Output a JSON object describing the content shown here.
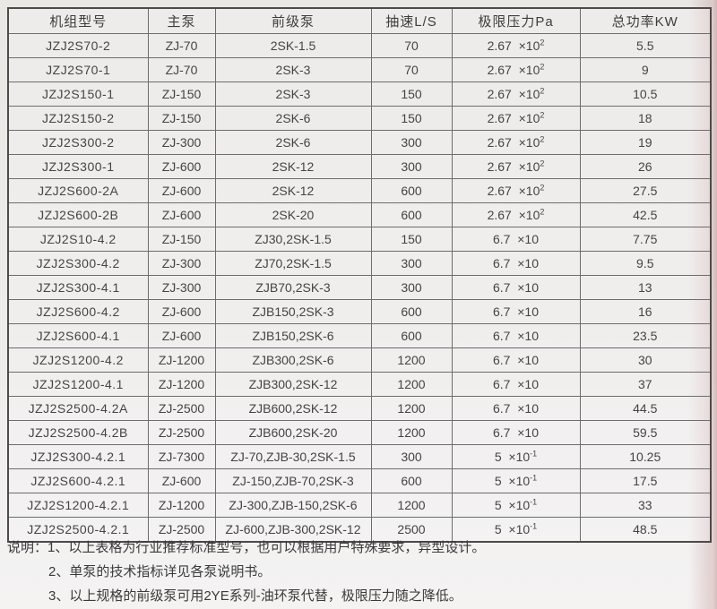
{
  "table": {
    "headers": [
      "机组型号",
      "主泵",
      "前级泵",
      "抽速L/S",
      "极限压力Pa",
      "总功率KW"
    ],
    "rows": [
      {
        "model": "JZJ2S70-2",
        "main_pump": "ZJ-70",
        "backing_pump": "2SK-1.5",
        "speed": "70",
        "pressure": {
          "base": "2.67",
          "exp": "2"
        },
        "power": "5.5"
      },
      {
        "model": "JZJ2S70-1",
        "main_pump": "ZJ-70",
        "backing_pump": "2SK-3",
        "speed": "70",
        "pressure": {
          "base": "2.67",
          "exp": "2"
        },
        "power": "9"
      },
      {
        "model": "JZJ2S150-1",
        "main_pump": "ZJ-150",
        "backing_pump": "2SK-3",
        "speed": "150",
        "pressure": {
          "base": "2.67",
          "exp": "2"
        },
        "power": "10.5"
      },
      {
        "model": "JZJ2S150-2",
        "main_pump": "ZJ-150",
        "backing_pump": "2SK-6",
        "speed": "150",
        "pressure": {
          "base": "2.67",
          "exp": "2"
        },
        "power": "18"
      },
      {
        "model": "JZJ2S300-2",
        "main_pump": "ZJ-300",
        "backing_pump": "2SK-6",
        "speed": "300",
        "pressure": {
          "base": "2.67",
          "exp": "2"
        },
        "power": "19"
      },
      {
        "model": "JZJ2S300-1",
        "main_pump": "ZJ-600",
        "backing_pump": "2SK-12",
        "speed": "300",
        "pressure": {
          "base": "2.67",
          "exp": "2"
        },
        "power": "26"
      },
      {
        "model": "JZJ2S600-2A",
        "main_pump": "ZJ-600",
        "backing_pump": "2SK-12",
        "speed": "600",
        "pressure": {
          "base": "2.67",
          "exp": "2"
        },
        "power": "27.5"
      },
      {
        "model": "JZJ2S600-2B",
        "main_pump": "ZJ-600",
        "backing_pump": "2SK-20",
        "speed": "600",
        "pressure": {
          "base": "2.67",
          "exp": "2"
        },
        "power": "42.5"
      },
      {
        "model": "JZJ2S10-4.2",
        "main_pump": "ZJ-150",
        "backing_pump": "ZJ30,2SK-1.5",
        "speed": "150",
        "pressure": {
          "base": "6.7",
          "exp": ""
        },
        "power": "7.75"
      },
      {
        "model": "JZJ2S300-4.2",
        "main_pump": "ZJ-300",
        "backing_pump": "ZJ70,2SK-1.5",
        "speed": "300",
        "pressure": {
          "base": "6.7",
          "exp": ""
        },
        "power": "9.5"
      },
      {
        "model": "JZJ2S300-4.1",
        "main_pump": "ZJ-300",
        "backing_pump": "ZJB70,2SK-3",
        "speed": "300",
        "pressure": {
          "base": "6.7",
          "exp": ""
        },
        "power": "13"
      },
      {
        "model": "JZJ2S600-4.2",
        "main_pump": "ZJ-600",
        "backing_pump": "ZJB150,2SK-3",
        "speed": "600",
        "pressure": {
          "base": "6.7",
          "exp": ""
        },
        "power": "16"
      },
      {
        "model": "JZJ2S600-4.1",
        "main_pump": "ZJ-600",
        "backing_pump": "ZJB150,2SK-6",
        "speed": "600",
        "pressure": {
          "base": "6.7",
          "exp": ""
        },
        "power": "23.5"
      },
      {
        "model": "JZJ2S1200-4.2",
        "main_pump": "ZJ-1200",
        "backing_pump": "ZJB300,2SK-6",
        "speed": "1200",
        "pressure": {
          "base": "6.7",
          "exp": ""
        },
        "power": "30"
      },
      {
        "model": "JZJ2S1200-4.1",
        "main_pump": "ZJ-1200",
        "backing_pump": "ZJB300,2SK-12",
        "speed": "1200",
        "pressure": {
          "base": "6.7",
          "exp": ""
        },
        "power": "37"
      },
      {
        "model": "JZJ2S2500-4.2A",
        "main_pump": "ZJ-2500",
        "backing_pump": "ZJB600,2SK-12",
        "speed": "1200",
        "pressure": {
          "base": "6.7",
          "exp": ""
        },
        "power": "44.5"
      },
      {
        "model": "JZJ2S2500-4.2B",
        "main_pump": "ZJ-2500",
        "backing_pump": "ZJB600,2SK-20",
        "speed": "1200",
        "pressure": {
          "base": "6.7",
          "exp": ""
        },
        "power": "59.5"
      },
      {
        "model": "JZJ2S300-4.2.1",
        "main_pump": "ZJ-7300",
        "backing_pump": "ZJ-70,ZJB-30,2SK-1.5",
        "speed": "300",
        "pressure": {
          "base": "5",
          "exp": "-1"
        },
        "power": "10.25"
      },
      {
        "model": "JZJ2S600-4.2.1",
        "main_pump": "ZJ-600",
        "backing_pump": "ZJ-150,ZJB-70,2SK-3",
        "speed": "600",
        "pressure": {
          "base": "5",
          "exp": "-1"
        },
        "power": "17.5"
      },
      {
        "model": "JZJ2S1200-4.2.1",
        "main_pump": "ZJ-1200",
        "backing_pump": "ZJ-300,ZJB-150,2SK-6",
        "speed": "1200",
        "pressure": {
          "base": "5",
          "exp": "-1"
        },
        "power": "33"
      },
      {
        "model": "JZJ2S2500-4.2.1",
        "main_pump": "ZJ-2500",
        "backing_pump": "ZJ-600,ZJB-300,2SK-12",
        "speed": "2500",
        "pressure": {
          "base": "5",
          "exp": "-1"
        },
        "power": "48.5"
      }
    ],
    "pressure_times_label": "×10"
  },
  "notes": {
    "label": "说明：",
    "items": [
      "1、以上表格为行业推荐标准型号，也可以根据用户特殊要求，异型设计。",
      "2、单泵的技术指标详见各泵说明书。",
      "3、以上规格的前级泵可用2YE系列-油环泵代替，极限压力随之降低。"
    ]
  },
  "colors": {
    "border": "#6e6d6b",
    "outer_border": "#4c4b49",
    "text": "#3f3f3f",
    "paper": "#edecea",
    "edge_tint": "#d9b8b8"
  }
}
